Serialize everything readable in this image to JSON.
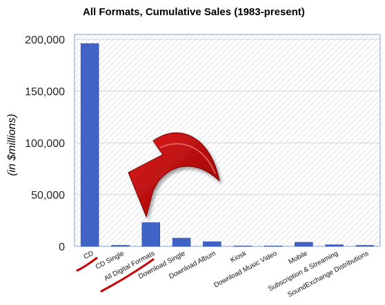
{
  "chart_data": {
    "type": "bar",
    "title": "All Formats, Cumulative Sales (1983-present)",
    "xlabel": "",
    "ylabel": "(in $millions)",
    "ylim": [
      0,
      200000
    ],
    "yticks": [
      "0",
      "50,000",
      "100,000",
      "150,000",
      "200,000"
    ],
    "ytick_values": [
      0,
      50000,
      100000,
      150000,
      200000
    ],
    "categories": [
      "CD",
      "CD Single",
      "All Digital Formats",
      "Download Single",
      "Download Album",
      "Kiosk",
      "Download Music Video",
      "Mobile",
      "Subscription & Streaming",
      "SoundExchange Distributions"
    ],
    "values": [
      196000,
      1000,
      23000,
      8000,
      4500,
      50,
      100,
      4000,
      1600,
      1000
    ],
    "grid": true,
    "legend": "none",
    "colors": {
      "bar": "#3f63c7",
      "bar_edge": "#2a4aa8",
      "plot_bg": "#ffffff",
      "plot_border": "#a9bde0",
      "grid": "#cfcfcf",
      "hatch": "#e2e2e2",
      "arrow": "#cc0000",
      "underline": "#cc0000"
    },
    "annotations": [
      {
        "type": "red-curved-arrow",
        "points_to": "All Digital Formats"
      },
      {
        "type": "red-underline",
        "under": "CD"
      },
      {
        "type": "red-underline",
        "under": "All Digital Formats"
      }
    ]
  }
}
